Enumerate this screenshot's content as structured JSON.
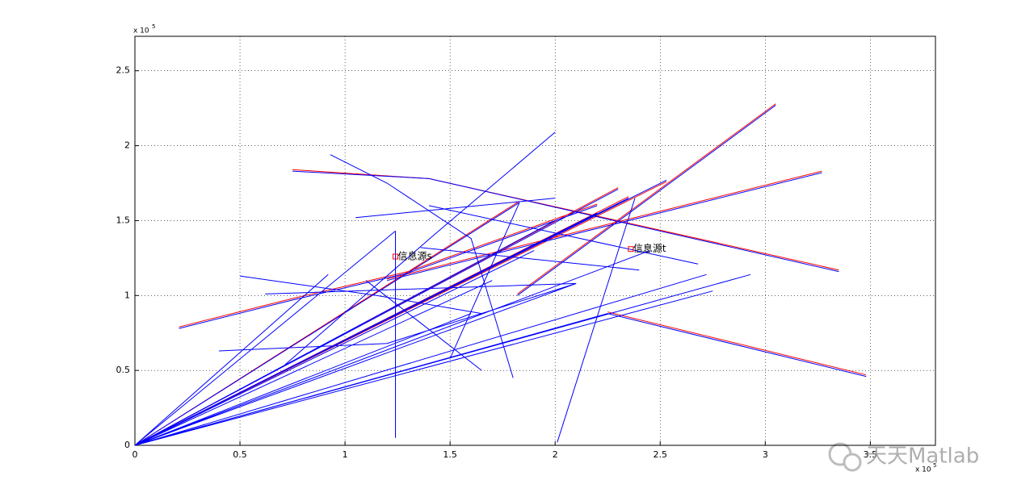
{
  "chart_data": {
    "type": "line",
    "xlim": [
      0,
      3.81
    ],
    "ylim": [
      0,
      2.73
    ],
    "xticks": [
      0,
      0.5,
      1,
      1.5,
      2,
      2.5,
      3,
      3.5
    ],
    "yticks": [
      0,
      0.5,
      1,
      1.5,
      2,
      2.5
    ],
    "grid": true,
    "x_multiplier": {
      "base": "x 10",
      "exponent": "5"
    },
    "y_multiplier": {
      "base": "x 10",
      "exponent": "5"
    },
    "series": [
      {
        "color": "#ff0000",
        "x": [
          0,
          2.3,
          null,
          0,
          2.35,
          null,
          0,
          2.53,
          null,
          0,
          1.83,
          null,
          0.75,
          1.4,
          3.35,
          null,
          2.25,
          3.48,
          null,
          1.82,
          3.05,
          null,
          1.2,
          3.27,
          null,
          0.21,
          0.75,
          1.3,
          2.2
        ],
        "y": [
          0,
          1.72,
          null,
          0,
          1.66,
          null,
          0,
          1.76,
          null,
          0,
          1.63,
          null,
          1.84,
          1.78,
          1.17,
          null,
          0.89,
          0.47,
          null,
          1.01,
          2.28,
          null,
          1.11,
          1.83,
          null,
          0.79,
          0.98,
          1.16,
          1.61
        ]
      },
      {
        "color": "#0000ff",
        "x": [
          0,
          1.24,
          null,
          0,
          0.92,
          null,
          0,
          1.83,
          null,
          0,
          2.3,
          null,
          0,
          2.35,
          null,
          0,
          2.53,
          null,
          0,
          2.1,
          null,
          0,
          2.25,
          null,
          0,
          2.72,
          null,
          0,
          2.93,
          null,
          0,
          2.75,
          null,
          0,
          1.6,
          null,
          0,
          1.9,
          null,
          0,
          2.0,
          null,
          0,
          2.2,
          null,
          0,
          1.4,
          null,
          0,
          1.7,
          null,
          0,
          2.45,
          null,
          0.21,
          0.75,
          1.3,
          2.2,
          null,
          0.75,
          1.4,
          3.35,
          null,
          0.93,
          1.2,
          1.6,
          1.8,
          null,
          2.01,
          2.38,
          null,
          2.25,
          3.48,
          null,
          0.5,
          1.15,
          1.65,
          null,
          1.24,
          1.24,
          null,
          1.4,
          2.68,
          null,
          0.7,
          1.42,
          2.0,
          null,
          1.82,
          3.05,
          null,
          0.4,
          1.2,
          2.1,
          null,
          1.2,
          3.27,
          null,
          1.05,
          2.0,
          null,
          0.62,
          2.1,
          null,
          1.5,
          1.83,
          null,
          1.36,
          2.4,
          null,
          1.1,
          1.65
        ],
        "y": [
          0,
          1.43,
          null,
          0,
          1.14,
          null,
          0,
          1.62,
          null,
          0,
          1.71,
          null,
          0,
          1.65,
          null,
          0,
          1.77,
          null,
          0,
          1.08,
          null,
          0,
          0.88,
          null,
          0,
          1.14,
          null,
          0,
          1.14,
          null,
          0,
          1.03,
          null,
          0,
          0.88,
          null,
          0,
          1.3,
          null,
          0,
          1.5,
          null,
          0,
          1.55,
          null,
          0,
          1.05,
          null,
          0,
          1.1,
          null,
          0,
          1.3,
          null,
          0.78,
          0.97,
          1.15,
          1.6,
          null,
          1.83,
          1.78,
          1.16,
          null,
          1.94,
          1.75,
          1.38,
          0.45,
          null,
          0.02,
          1.65,
          null,
          0.88,
          0.46,
          null,
          1.13,
          1.0,
          0.88,
          null,
          0.05,
          1.43,
          null,
          1.6,
          1.21,
          null,
          0.52,
          1.4,
          2.09,
          null,
          1.0,
          2.27,
          null,
          0.63,
          0.68,
          1.08,
          null,
          1.1,
          1.82,
          null,
          1.52,
          1.65,
          null,
          1.01,
          1.08,
          null,
          0.58,
          1.62,
          null,
          1.32,
          1.17,
          null,
          1.1,
          0.5
        ]
      }
    ],
    "annotations": [
      {
        "text": "信息源s",
        "x": 1.24,
        "y": 1.26
      },
      {
        "text": "信息源t",
        "x": 2.36,
        "y": 1.31
      }
    ],
    "watermark": "天天Matlab"
  }
}
